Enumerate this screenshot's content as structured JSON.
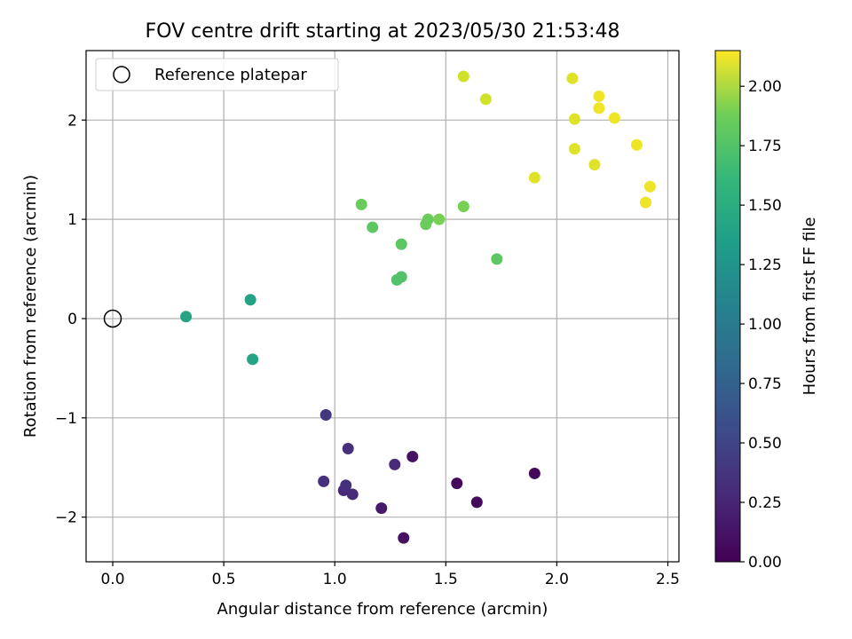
{
  "chart_data": {
    "type": "scatter",
    "title": "FOV centre drift starting at 2023/05/30 21:53:48",
    "xlabel": "Angular distance from reference (arcmin)",
    "ylabel": "Rotation from reference (arcmin)",
    "xlim": [
      -0.12,
      2.55
    ],
    "ylim": [
      -2.45,
      2.7
    ],
    "xticks": [
      0.0,
      0.5,
      1.0,
      1.5,
      2.0,
      2.5
    ],
    "xtick_labels": [
      "0.0",
      "0.5",
      "1.0",
      "1.5",
      "2.0",
      "2.5"
    ],
    "yticks": [
      -2,
      -1,
      0,
      1,
      2
    ],
    "ytick_labels": [
      "−2",
      "−1",
      "0",
      "1",
      "2"
    ],
    "grid": true,
    "legend": {
      "position": "upper-left",
      "entries": [
        "Reference platepar"
      ]
    },
    "reference_point": {
      "x": 0.0,
      "y": 0.0,
      "marker": "hollow-circle",
      "color": "#000000"
    },
    "colorbar": {
      "label": "Hours from first FF file",
      "colormap": "viridis",
      "range": [
        0.0,
        2.15
      ],
      "ticks": [
        0.0,
        0.25,
        0.5,
        0.75,
        1.0,
        1.25,
        1.5,
        1.75,
        2.0
      ],
      "tick_labels": [
        "0.00",
        "0.25",
        "0.50",
        "0.75",
        "1.00",
        "1.25",
        "1.50",
        "1.75",
        "2.00"
      ]
    },
    "points": [
      {
        "x": 1.9,
        "y": -1.56,
        "c": 0.05
      },
      {
        "x": 1.55,
        "y": -1.66,
        "c": 0.05
      },
      {
        "x": 1.64,
        "y": -1.85,
        "c": 0.05
      },
      {
        "x": 1.35,
        "y": -1.39,
        "c": 0.1
      },
      {
        "x": 1.31,
        "y": -2.21,
        "c": 0.1
      },
      {
        "x": 1.21,
        "y": -1.91,
        "c": 0.15
      },
      {
        "x": 1.27,
        "y": -1.47,
        "c": 0.25
      },
      {
        "x": 1.06,
        "y": -1.31,
        "c": 0.3
      },
      {
        "x": 1.08,
        "y": -1.77,
        "c": 0.25
      },
      {
        "x": 1.04,
        "y": -1.73,
        "c": 0.25
      },
      {
        "x": 1.05,
        "y": -1.68,
        "c": 0.3
      },
      {
        "x": 0.95,
        "y": -1.64,
        "c": 0.3
      },
      {
        "x": 0.96,
        "y": -0.97,
        "c": 0.35
      },
      {
        "x": 0.63,
        "y": -0.41,
        "c": 1.25
      },
      {
        "x": 0.33,
        "y": 0.02,
        "c": 1.25
      },
      {
        "x": 0.62,
        "y": 0.19,
        "c": 1.25
      },
      {
        "x": 1.28,
        "y": 0.39,
        "c": 1.55
      },
      {
        "x": 1.3,
        "y": 0.42,
        "c": 1.55
      },
      {
        "x": 1.73,
        "y": 0.6,
        "c": 1.6
      },
      {
        "x": 1.3,
        "y": 0.75,
        "c": 1.6
      },
      {
        "x": 1.17,
        "y": 0.92,
        "c": 1.6
      },
      {
        "x": 1.12,
        "y": 1.15,
        "c": 1.65
      },
      {
        "x": 1.41,
        "y": 0.95,
        "c": 1.65
      },
      {
        "x": 1.42,
        "y": 1.0,
        "c": 1.65
      },
      {
        "x": 1.47,
        "y": 1.0,
        "c": 1.7
      },
      {
        "x": 1.58,
        "y": 1.13,
        "c": 1.7
      },
      {
        "x": 1.9,
        "y": 1.42,
        "c": 2.05
      },
      {
        "x": 2.08,
        "y": 1.71,
        "c": 2.05
      },
      {
        "x": 2.17,
        "y": 1.55,
        "c": 2.05
      },
      {
        "x": 2.36,
        "y": 1.75,
        "c": 2.1
      },
      {
        "x": 2.42,
        "y": 1.33,
        "c": 2.1
      },
      {
        "x": 2.4,
        "y": 1.17,
        "c": 2.1
      },
      {
        "x": 2.08,
        "y": 2.01,
        "c": 2.05
      },
      {
        "x": 2.26,
        "y": 2.02,
        "c": 2.1
      },
      {
        "x": 2.19,
        "y": 2.12,
        "c": 2.1
      },
      {
        "x": 2.19,
        "y": 2.24,
        "c": 2.1
      },
      {
        "x": 2.07,
        "y": 2.42,
        "c": 2.05
      },
      {
        "x": 1.68,
        "y": 2.21,
        "c": 2.0
      },
      {
        "x": 1.58,
        "y": 2.44,
        "c": 2.0
      }
    ]
  }
}
